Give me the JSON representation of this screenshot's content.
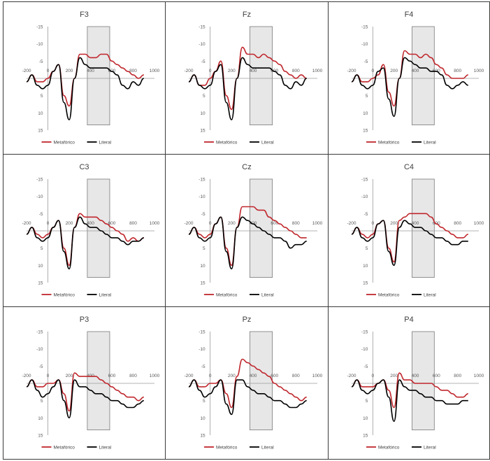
{
  "chart_data": [
    {
      "type": "line",
      "title": "F3",
      "x": [
        -200,
        -150,
        -100,
        -50,
        0,
        50,
        100,
        150,
        200,
        250,
        300,
        350,
        400,
        450,
        500,
        550,
        600,
        650,
        700,
        750,
        800,
        850,
        900
      ],
      "xticks": [
        -200,
        0,
        200,
        400,
        600,
        800,
        1000
      ],
      "yticks": [
        -15,
        -10,
        -5,
        0,
        5,
        10,
        15
      ],
      "ylim": [
        -15,
        15
      ],
      "xlim": [
        -200,
        1000
      ],
      "y_inverted": true,
      "window": [
        370,
        580
      ],
      "legend": "bottom-center",
      "series": [
        {
          "name": "Metafórico",
          "color": "#c0272d",
          "values": [
            1,
            -1,
            1,
            1,
            0,
            -2,
            -4,
            5,
            8,
            0,
            -7,
            -7,
            -6,
            -6,
            -7,
            -7,
            -5,
            -4,
            -3,
            -2,
            -1,
            0,
            -1
          ]
        },
        {
          "name": "Literal",
          "color": "#000000",
          "values": [
            1,
            -1,
            2,
            3,
            2,
            -2,
            -4,
            7,
            12,
            0,
            -6,
            -4,
            -3,
            -3,
            -3,
            -3,
            -2,
            -1,
            2,
            3,
            1,
            2,
            0
          ]
        }
      ]
    },
    {
      "type": "line",
      "title": "Fz",
      "x": [
        -200,
        -150,
        -100,
        -50,
        0,
        50,
        100,
        150,
        200,
        250,
        300,
        350,
        400,
        450,
        500,
        550,
        600,
        650,
        700,
        750,
        800,
        850,
        900
      ],
      "xticks": [
        -200,
        0,
        200,
        400,
        600,
        800,
        1000
      ],
      "yticks": [
        -15,
        -10,
        -5,
        0,
        5,
        10,
        15
      ],
      "ylim": [
        -15,
        15
      ],
      "xlim": [
        -200,
        1000
      ],
      "y_inverted": true,
      "window": [
        370,
        580
      ],
      "legend": "bottom-center",
      "series": [
        {
          "name": "Metafórico",
          "color": "#c0272d",
          "values": [
            1,
            -1,
            2,
            2,
            0,
            -2,
            -5,
            5,
            9,
            0,
            -9,
            -7,
            -7,
            -6,
            -7,
            -6,
            -5,
            -4,
            -2,
            -1,
            0,
            -1,
            0
          ]
        },
        {
          "name": "Literal",
          "color": "#000000",
          "values": [
            1,
            -1,
            2,
            3,
            2,
            -2,
            -4,
            7,
            12,
            0,
            -6,
            -4,
            -3,
            -3,
            -3,
            -3,
            -2,
            -1,
            2,
            3,
            1,
            2,
            0
          ]
        }
      ]
    },
    {
      "type": "line",
      "title": "F4",
      "x": [
        -200,
        -150,
        -100,
        -50,
        0,
        50,
        100,
        150,
        200,
        250,
        300,
        350,
        400,
        450,
        500,
        550,
        600,
        650,
        700,
        750,
        800,
        850,
        900
      ],
      "xticks": [
        -200,
        0,
        200,
        400,
        600,
        800,
        1000
      ],
      "yticks": [
        -15,
        -10,
        -5,
        0,
        5,
        10,
        15
      ],
      "ylim": [
        -15,
        15
      ],
      "xlim": [
        -200,
        1000
      ],
      "y_inverted": true,
      "window": [
        370,
        580
      ],
      "legend": "bottom-center",
      "series": [
        {
          "name": "Metafórico",
          "color": "#c0272d",
          "values": [
            1,
            -1,
            1,
            1,
            0,
            -1,
            -4,
            4,
            8,
            0,
            -8,
            -7,
            -7,
            -6,
            -7,
            -6,
            -4,
            -3,
            -1,
            0,
            0,
            0,
            -1
          ]
        },
        {
          "name": "Literal",
          "color": "#000000",
          "values": [
            1,
            -1,
            2,
            3,
            2,
            -2,
            -3,
            6,
            11,
            0,
            -6,
            -5,
            -4,
            -3,
            -3,
            -2,
            -2,
            -1,
            2,
            3,
            2,
            1,
            2
          ]
        }
      ]
    },
    {
      "type": "line",
      "title": "C3",
      "x": [
        -200,
        -150,
        -100,
        -50,
        0,
        50,
        100,
        150,
        200,
        250,
        300,
        350,
        400,
        450,
        500,
        550,
        600,
        650,
        700,
        750,
        800,
        850,
        900
      ],
      "xticks": [
        -200,
        0,
        200,
        400,
        600,
        800,
        1000
      ],
      "yticks": [
        -15,
        -10,
        -5,
        0,
        5,
        10,
        15
      ],
      "ylim": [
        -15,
        15
      ],
      "xlim": [
        -200,
        1000
      ],
      "y_inverted": true,
      "window": [
        370,
        580
      ],
      "legend": "bottom-center",
      "series": [
        {
          "name": "Metafórico",
          "color": "#c0272d",
          "values": [
            1,
            -1,
            1,
            2,
            1,
            -1,
            -3,
            5,
            10,
            -1,
            -5,
            -4,
            -4,
            -4,
            -3,
            -2,
            -1,
            0,
            1,
            3,
            2,
            3,
            2
          ]
        },
        {
          "name": "Literal",
          "color": "#000000",
          "values": [
            1,
            -1,
            2,
            3,
            2,
            -1,
            -3,
            6,
            11,
            -1,
            -4,
            -2,
            -1,
            -1,
            0,
            1,
            2,
            2,
            3,
            4,
            3,
            3,
            2
          ]
        }
      ]
    },
    {
      "type": "line",
      "title": "Cz",
      "x": [
        -200,
        -150,
        -100,
        -50,
        0,
        50,
        100,
        150,
        200,
        250,
        300,
        350,
        400,
        450,
        500,
        550,
        600,
        650,
        700,
        750,
        800,
        850,
        900
      ],
      "xticks": [
        -200,
        0,
        200,
        400,
        600,
        800,
        1000
      ],
      "yticks": [
        -15,
        -10,
        -5,
        0,
        5,
        10,
        15
      ],
      "ylim": [
        -15,
        15
      ],
      "xlim": [
        -200,
        1000
      ],
      "y_inverted": true,
      "window": [
        370,
        580
      ],
      "legend": "bottom-center",
      "series": [
        {
          "name": "Metafórico",
          "color": "#c0272d",
          "values": [
            1,
            -1,
            1,
            2,
            1,
            -2,
            -4,
            5,
            10,
            -1,
            -7,
            -7,
            -7,
            -6,
            -6,
            -4,
            -3,
            -2,
            -1,
            0,
            1,
            2,
            2
          ]
        },
        {
          "name": "Literal",
          "color": "#000000",
          "values": [
            1,
            -1,
            2,
            3,
            2,
            -2,
            -4,
            6,
            11,
            -1,
            -4,
            -3,
            -2,
            -1,
            0,
            1,
            2,
            2,
            3,
            5,
            4,
            4,
            3
          ]
        }
      ]
    },
    {
      "type": "line",
      "title": "C4",
      "x": [
        -200,
        -150,
        -100,
        -50,
        0,
        50,
        100,
        150,
        200,
        250,
        300,
        350,
        400,
        450,
        500,
        550,
        600,
        650,
        700,
        750,
        800,
        850,
        900
      ],
      "xticks": [
        -200,
        0,
        200,
        400,
        600,
        800,
        1000
      ],
      "yticks": [
        -15,
        -10,
        -5,
        0,
        5,
        10,
        15
      ],
      "ylim": [
        -15,
        15
      ],
      "xlim": [
        -200,
        1000
      ],
      "y_inverted": true,
      "window": [
        370,
        580
      ],
      "legend": "bottom-center",
      "series": [
        {
          "name": "Metafórico",
          "color": "#c0272d",
          "values": [
            1,
            -1,
            1,
            2,
            1,
            -2,
            -3,
            5,
            9,
            -3,
            -4,
            -5,
            -5,
            -5,
            -5,
            -4,
            -2,
            -1,
            0,
            1,
            2,
            2,
            1
          ]
        },
        {
          "name": "Literal",
          "color": "#000000",
          "values": [
            1,
            -1,
            2,
            3,
            2,
            -2,
            -3,
            6,
            10,
            -1,
            -3,
            -2,
            -1,
            -1,
            0,
            1,
            2,
            2,
            3,
            4,
            4,
            3,
            3
          ]
        }
      ]
    },
    {
      "type": "line",
      "title": "P3",
      "x": [
        -200,
        -150,
        -100,
        -50,
        0,
        50,
        100,
        150,
        200,
        250,
        300,
        350,
        400,
        450,
        500,
        550,
        600,
        650,
        700,
        750,
        800,
        850,
        900
      ],
      "xticks": [
        -200,
        0,
        200,
        400,
        600,
        800,
        1000
      ],
      "yticks": [
        -15,
        -10,
        -5,
        0,
        5,
        10,
        15
      ],
      "ylim": [
        -15,
        15
      ],
      "xlim": [
        -200,
        1000
      ],
      "y_inverted": true,
      "window": [
        370,
        580
      ],
      "legend": "bottom-center",
      "series": [
        {
          "name": "Metafórico",
          "color": "#c0272d",
          "values": [
            1,
            -1,
            1,
            1,
            0,
            0,
            -1,
            3,
            8,
            -3,
            -2,
            -2,
            -2,
            -2,
            -1,
            0,
            1,
            2,
            3,
            4,
            4,
            5,
            4
          ]
        },
        {
          "name": "Literal",
          "color": "#000000",
          "values": [
            1,
            -1,
            2,
            4,
            3,
            1,
            -1,
            5,
            10,
            -1,
            1,
            1,
            2,
            3,
            3,
            4,
            5,
            5,
            6,
            7,
            7,
            6,
            5
          ]
        }
      ]
    },
    {
      "type": "line",
      "title": "Pz",
      "x": [
        -200,
        -150,
        -100,
        -50,
        0,
        50,
        100,
        150,
        200,
        250,
        300,
        350,
        400,
        450,
        500,
        550,
        600,
        650,
        700,
        750,
        800,
        850,
        900
      ],
      "xticks": [
        -200,
        0,
        200,
        400,
        600,
        800,
        1000
      ],
      "yticks": [
        -15,
        -10,
        -5,
        0,
        5,
        10,
        15
      ],
      "ylim": [
        -15,
        15
      ],
      "xlim": [
        -200,
        1000
      ],
      "y_inverted": true,
      "window": [
        370,
        580
      ],
      "legend": "bottom-center",
      "series": [
        {
          "name": "Metafórico",
          "color": "#c0272d",
          "values": [
            1,
            -1,
            1,
            1,
            0,
            0,
            -1,
            3,
            7,
            -2,
            -7,
            -6,
            -5,
            -4,
            -3,
            -2,
            0,
            1,
            2,
            3,
            4,
            5,
            4
          ]
        },
        {
          "name": "Literal",
          "color": "#000000",
          "values": [
            1,
            -1,
            2,
            4,
            3,
            1,
            -1,
            6,
            9,
            -1,
            -1,
            1,
            2,
            3,
            3,
            4,
            5,
            5,
            6,
            7,
            7,
            6,
            5
          ]
        }
      ]
    },
    {
      "type": "line",
      "title": "P4",
      "x": [
        -200,
        -150,
        -100,
        -50,
        0,
        50,
        100,
        150,
        200,
        250,
        300,
        350,
        400,
        450,
        500,
        550,
        600,
        650,
        700,
        750,
        800,
        850,
        900
      ],
      "xticks": [
        -200,
        0,
        200,
        400,
        600,
        800,
        1000
      ],
      "yticks": [
        -15,
        -10,
        -5,
        0,
        5,
        10,
        15
      ],
      "ylim": [
        -15,
        15
      ],
      "xlim": [
        -200,
        1000
      ],
      "y_inverted": true,
      "window": [
        370,
        580
      ],
      "legend": "bottom-center",
      "series": [
        {
          "name": "Metafórico",
          "color": "#c0272d",
          "values": [
            1,
            -1,
            1,
            1,
            1,
            0,
            -1,
            2,
            7,
            -3,
            -1,
            -1,
            0,
            0,
            0,
            0,
            1,
            2,
            2,
            3,
            4,
            4,
            3
          ]
        },
        {
          "name": "Literal",
          "color": "#000000",
          "values": [
            1,
            -1,
            2,
            3,
            2,
            0,
            -1,
            4,
            11,
            -1,
            1,
            2,
            2,
            3,
            4,
            4,
            5,
            5,
            6,
            6,
            6,
            5,
            5
          ]
        }
      ]
    }
  ]
}
